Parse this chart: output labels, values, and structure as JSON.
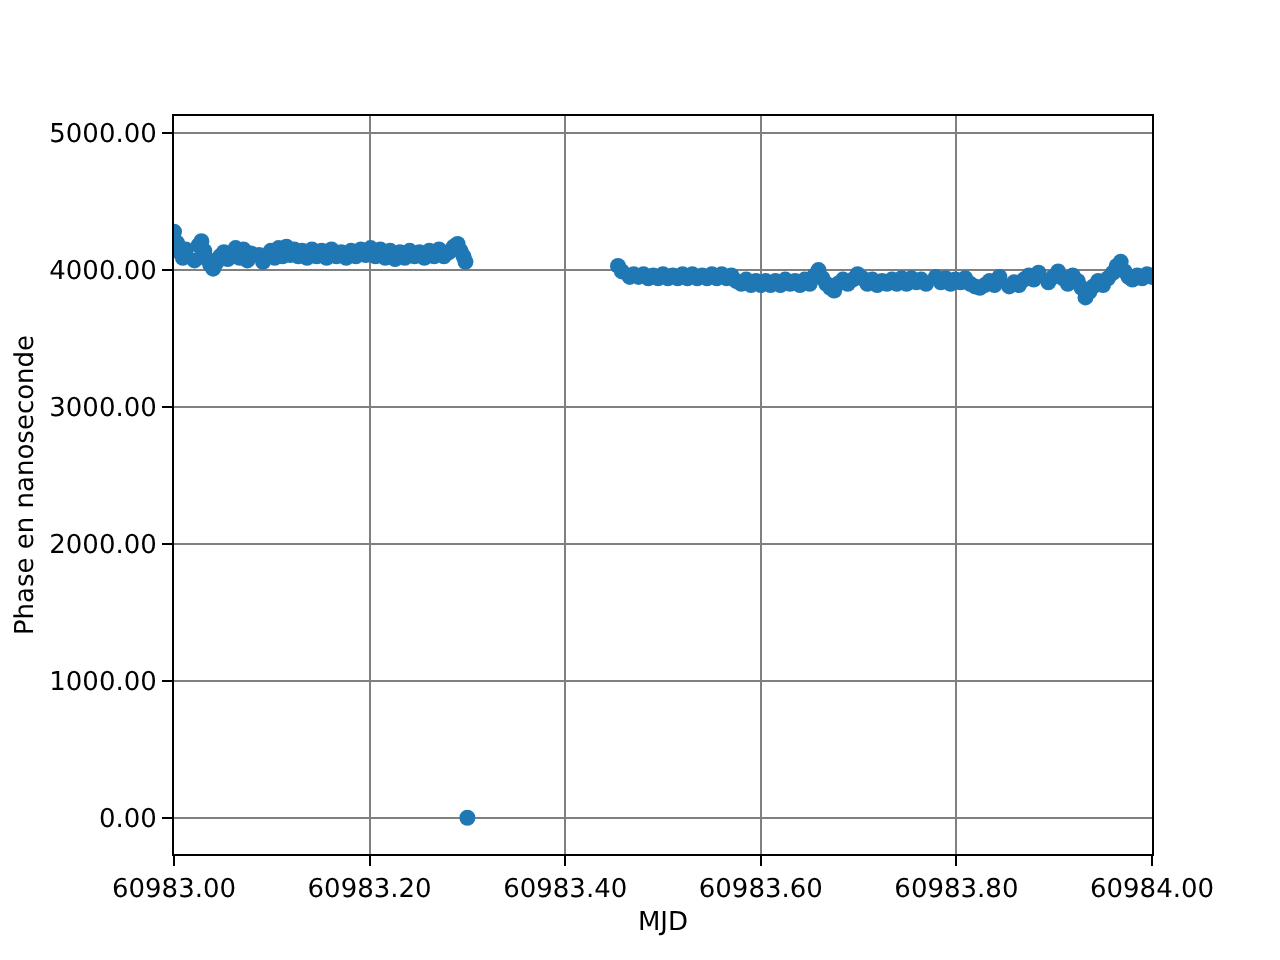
{
  "chart_data": {
    "type": "scatter",
    "xlabel": "MJD",
    "ylabel": "Phase en nanoseconde",
    "x": [
      60983.0,
      60983.003,
      60983.006,
      60983.009,
      60983.012,
      60983.021,
      60983.025,
      60983.028,
      60983.031,
      60983.034,
      60983.037,
      60983.04,
      60983.043,
      60983.047,
      60983.051,
      60983.055,
      60983.063,
      60983.067,
      60983.071,
      60983.075,
      60983.079,
      60983.087,
      60983.091,
      60983.099,
      60983.103,
      60983.107,
      60983.111,
      60983.115,
      60983.119,
      60983.123,
      60983.127,
      60983.131,
      60983.136,
      60983.141,
      60983.146,
      60983.151,
      60983.156,
      60983.161,
      60983.166,
      60983.171,
      60983.176,
      60983.181,
      60983.186,
      60983.191,
      60983.196,
      60983.201,
      60983.206,
      60983.211,
      60983.216,
      60983.221,
      60983.226,
      60983.231,
      60983.236,
      60983.241,
      60983.246,
      60983.251,
      60983.256,
      60983.261,
      60983.266,
      60983.271,
      60983.276,
      60983.281,
      60983.286,
      60983.29,
      60983.293,
      60983.296,
      60983.298,
      60983.3,
      60983.454,
      60983.458,
      60983.466,
      60983.47,
      60983.475,
      60983.48,
      60983.485,
      60983.49,
      60983.495,
      60983.5,
      60983.505,
      60983.51,
      60983.515,
      60983.52,
      60983.525,
      60983.53,
      60983.535,
      60983.54,
      60983.545,
      60983.55,
      60983.555,
      60983.56,
      60983.565,
      60983.57,
      60983.575,
      60983.58,
      60983.585,
      60983.59,
      60983.595,
      60983.6,
      60983.605,
      60983.61,
      60983.615,
      60983.62,
      60983.625,
      60983.63,
      60983.635,
      60983.64,
      60983.645,
      60983.65,
      60983.655,
      60983.659,
      60983.663,
      60983.667,
      60983.671,
      60983.675,
      60983.679,
      60983.684,
      60983.689,
      60983.694,
      60983.699,
      60983.704,
      60983.709,
      60983.714,
      60983.719,
      60983.724,
      60983.729,
      60983.734,
      60983.739,
      60983.744,
      60983.749,
      60983.754,
      60983.759,
      60983.764,
      60983.769,
      60983.779,
      60983.784,
      60983.789,
      60983.794,
      60983.799,
      60983.804,
      60983.809,
      60983.814,
      60983.819,
      60983.824,
      60983.829,
      60983.834,
      60983.839,
      60983.844,
      60983.854,
      60983.859,
      60983.864,
      60983.869,
      60983.874,
      60983.879,
      60983.884,
      60983.894,
      60983.899,
      60983.904,
      60983.909,
      60983.914,
      60983.919,
      60983.924,
      60983.928,
      60983.932,
      60983.936,
      60983.94,
      60983.945,
      60983.95,
      60983.955,
      60983.96,
      60983.964,
      60983.968,
      60983.972,
      60983.976,
      60983.98,
      60983.985,
      60983.99,
      60983.995,
      60984.0
    ],
    "values": [
      4280,
      4200,
      4130,
      4090,
      4150,
      4070,
      4180,
      4210,
      4140,
      4080,
      4040,
      4010,
      4050,
      4100,
      4130,
      4080,
      4160,
      4090,
      4150,
      4070,
      4120,
      4110,
      4060,
      4140,
      4090,
      4160,
      4100,
      4170,
      4110,
      4150,
      4100,
      4140,
      4090,
      4150,
      4100,
      4140,
      4090,
      4150,
      4100,
      4130,
      4090,
      4140,
      4100,
      4150,
      4110,
      4160,
      4100,
      4150,
      4090,
      4140,
      4080,
      4130,
      4090,
      4140,
      4100,
      4130,
      4090,
      4140,
      4100,
      4150,
      4100,
      4130,
      4170,
      4190,
      4140,
      4100,
      4060,
      0,
      4030,
      3990,
      3950,
      3970,
      3950,
      3970,
      3940,
      3960,
      3940,
      3970,
      3940,
      3960,
      3940,
      3970,
      3940,
      3970,
      3940,
      3960,
      3940,
      3970,
      3940,
      3970,
      3940,
      3960,
      3920,
      3900,
      3930,
      3890,
      3920,
      3890,
      3920,
      3890,
      3920,
      3890,
      3930,
      3900,
      3920,
      3890,
      3930,
      3900,
      3960,
      4000,
      3940,
      3900,
      3870,
      3850,
      3900,
      3930,
      3900,
      3930,
      3970,
      3940,
      3900,
      3930,
      3890,
      3920,
      3900,
      3930,
      3900,
      3940,
      3900,
      3940,
      3910,
      3930,
      3900,
      3950,
      3910,
      3940,
      3900,
      3930,
      3910,
      3940,
      3900,
      3880,
      3870,
      3890,
      3920,
      3890,
      3950,
      3880,
      3910,
      3890,
      3930,
      3960,
      3930,
      3980,
      3910,
      3950,
      3990,
      3940,
      3900,
      3960,
      3920,
      3870,
      3800,
      3840,
      3880,
      3920,
      3890,
      3940,
      3980,
      4030,
      4060,
      3990,
      3950,
      3930,
      3960,
      3940,
      3970,
      3950
    ],
    "color": "#1f77b4",
    "marker": "circle",
    "xlim": [
      60983.0,
      60984.0
    ],
    "ylim": [
      -265,
      5125
    ],
    "xticks": [
      {
        "value": 60983.0,
        "label": "60983.00"
      },
      {
        "value": 60983.2,
        "label": "60983.20"
      },
      {
        "value": 60983.4,
        "label": "60983.40"
      },
      {
        "value": 60983.6,
        "label": "60983.60"
      },
      {
        "value": 60983.8,
        "label": "60983.80"
      },
      {
        "value": 60984.0,
        "label": "60984.00"
      }
    ],
    "yticks": [
      {
        "value": 0,
        "label": "0.00"
      },
      {
        "value": 1000,
        "label": "1000.00"
      },
      {
        "value": 2000,
        "label": "2000.00"
      },
      {
        "value": 3000,
        "label": "3000.00"
      },
      {
        "value": 4000,
        "label": "4000.00"
      },
      {
        "value": 5000,
        "label": "5000.00"
      }
    ],
    "grid": true
  }
}
